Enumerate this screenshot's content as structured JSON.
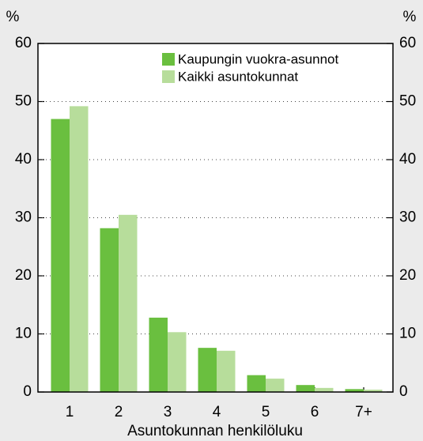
{
  "chart_data": {
    "type": "bar",
    "x_label": "Asuntokunnan henkilöluku",
    "y_label": "%",
    "categories": [
      "1",
      "2",
      "3",
      "4",
      "5",
      "6",
      "7+"
    ],
    "series": [
      {
        "name": "Kaupungin vuokra-asunnot",
        "color": "#6abf3f",
        "values": [
          47,
          28.2,
          12.8,
          7.6,
          2.9,
          1.2,
          0.5
        ]
      },
      {
        "name": "Kaikki asuntokunnat",
        "color": "#b7dd9b",
        "values": [
          49.2,
          30.5,
          10.3,
          7.1,
          2.3,
          0.7,
          0.4
        ]
      }
    ],
    "ylim": [
      0,
      60
    ],
    "yticks": [
      0,
      10,
      20,
      30,
      40,
      50,
      60
    ],
    "y2lim": [
      0,
      60
    ],
    "y2ticks": [
      0,
      10,
      20,
      30,
      40,
      50,
      60
    ],
    "grid": true,
    "legend": "upper right"
  }
}
